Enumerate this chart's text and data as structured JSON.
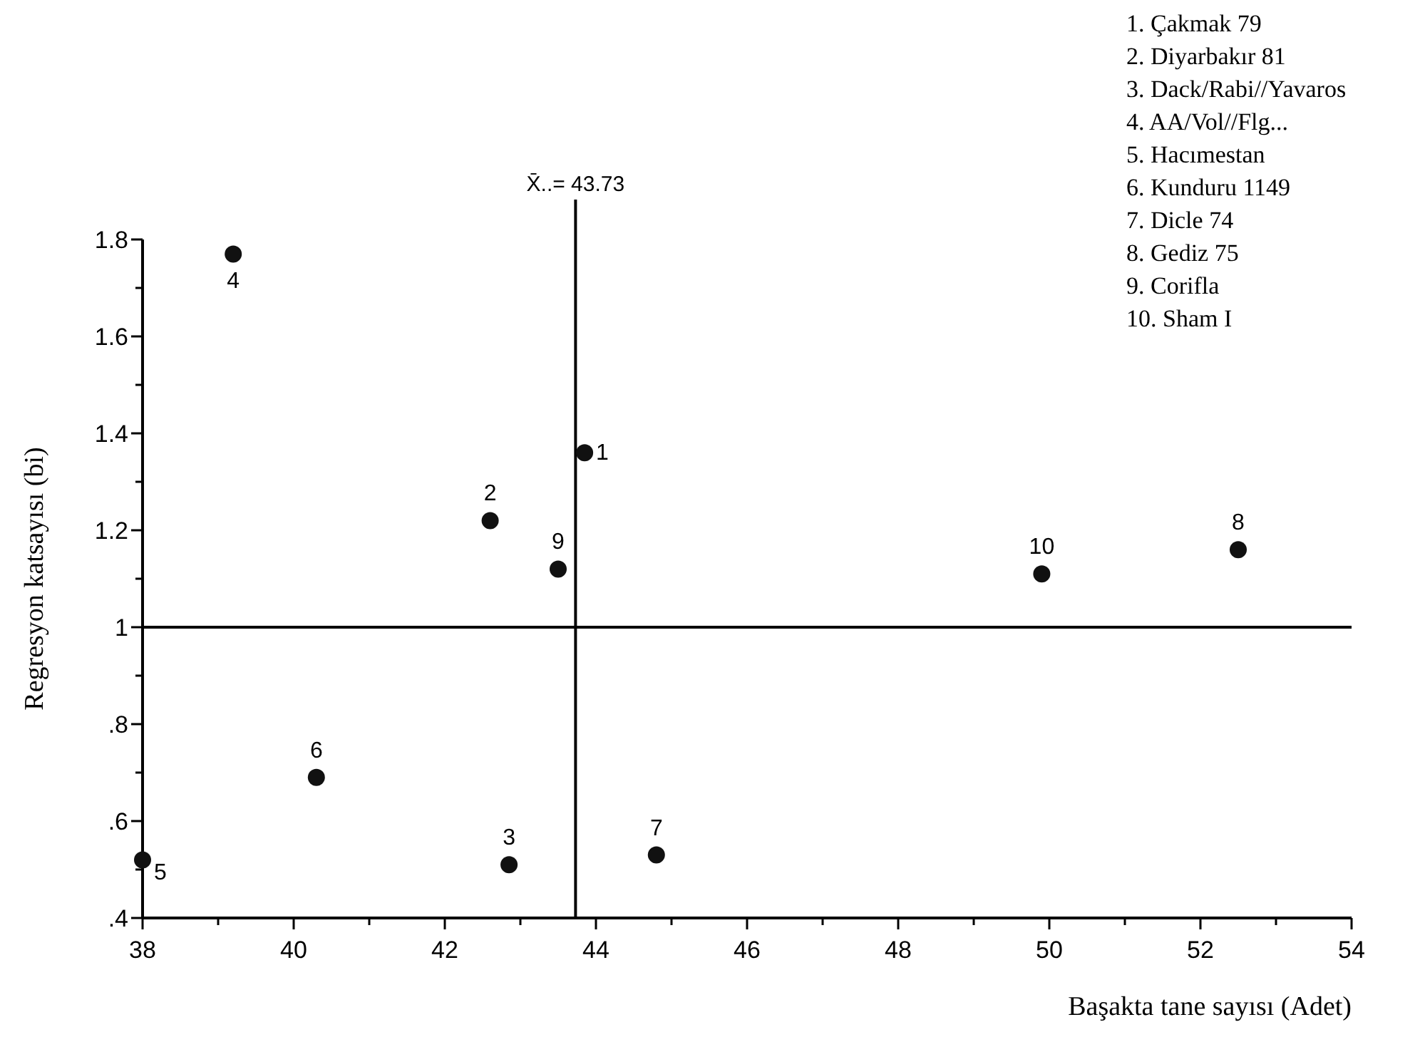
{
  "chart_data": {
    "type": "scatter",
    "xlabel": "Başakta tane sayısı (Adet)",
    "ylabel": "Regresyon katsayısı (bi)",
    "x": [
      43.85,
      42.6,
      42.85,
      39.2,
      38.0,
      40.3,
      44.8,
      52.5,
      43.5,
      49.9
    ],
    "values": [
      1.36,
      1.22,
      0.51,
      1.77,
      0.52,
      0.69,
      0.53,
      1.16,
      1.12,
      1.11
    ],
    "color": "#111111",
    "marker": "circle",
    "grid": false,
    "xlim": [
      38,
      54
    ],
    "xticks": [
      38,
      {
        "value": 39,
        "label": null
      },
      40,
      {
        "value": 41,
        "label": null
      },
      42,
      {
        "value": 43,
        "label": null
      },
      44,
      {
        "value": 45,
        "label": null
      },
      46,
      {
        "value": 47,
        "label": null
      },
      48,
      {
        "value": 49,
        "label": null
      },
      50,
      {
        "value": 51,
        "label": null
      },
      52,
      {
        "value": 53,
        "label": null
      },
      54
    ],
    "ylim": [
      0.4,
      1.8
    ],
    "yticks": [
      {
        "value": 0.4,
        "label": ".4"
      },
      {
        "value": 0.5,
        "label": null
      },
      {
        "value": 0.6,
        "label": ".6"
      },
      {
        "value": 0.7,
        "label": null
      },
      {
        "value": 0.8,
        "label": ".8"
      },
      {
        "value": 0.9,
        "label": null
      },
      1,
      {
        "value": 1.1,
        "label": null
      },
      1.2,
      {
        "value": 1.3,
        "label": null
      },
      1.4,
      {
        "value": 1.5,
        "label": null
      },
      1.6,
      {
        "value": 1.7,
        "label": null
      },
      1.8
    ],
    "ref_lines": [
      {
        "axis": "x",
        "value": 43.73,
        "label": "X̄..= 43.73"
      },
      {
        "axis": "y",
        "value": 1
      }
    ],
    "annotations": [
      {
        "text": "1",
        "x": 43.85,
        "y": 1.36
      },
      {
        "text": "2",
        "x": 42.6,
        "y": 1.22
      },
      {
        "text": "3",
        "x": 42.85,
        "y": 0.51
      },
      {
        "text": "4",
        "x": 39.2,
        "y": 1.77
      },
      {
        "text": "5",
        "x": 38.0,
        "y": 0.52
      },
      {
        "text": "6",
        "x": 40.3,
        "y": 0.69
      },
      {
        "text": "7",
        "x": 44.8,
        "y": 0.53
      },
      {
        "text": "8",
        "x": 52.5,
        "y": 1.16
      },
      {
        "text": "9",
        "x": 43.5,
        "y": 1.12
      },
      {
        "text": "10",
        "x": 49.9,
        "y": 1.11
      },
      "1. Çakmak 79",
      "2. Diyarbakır 81",
      "3. Dack/Rabi//Yavaros",
      "4. AA/Vol//Flg...",
      "5. Hacımestan",
      "6. Kunduru 1149",
      "7. Dicle 74",
      "8. Gediz 75",
      "9. Corifla",
      "10. Sham I"
    ]
  }
}
